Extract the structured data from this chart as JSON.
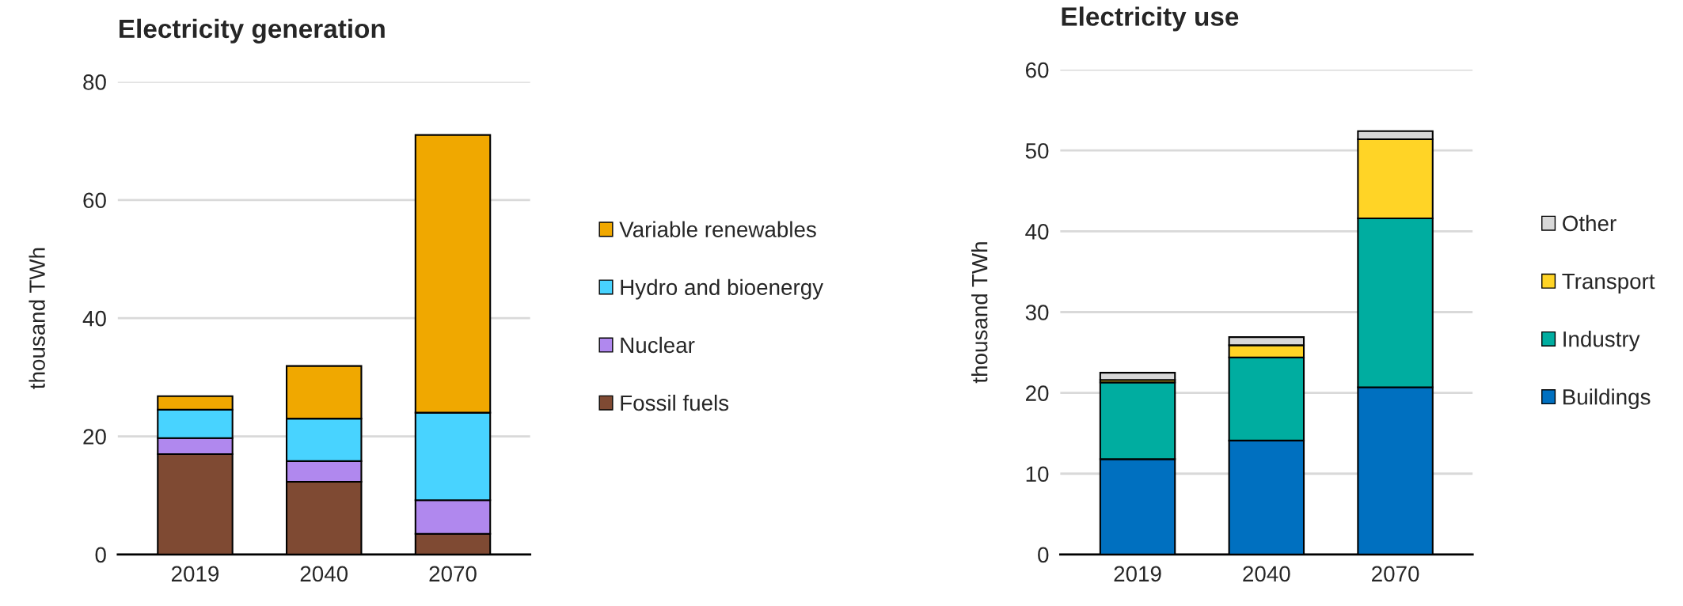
{
  "chart_data": [
    {
      "type": "bar",
      "title": "Electricity generation",
      "ylabel": "thousand TWh",
      "categories": [
        "2019",
        "2040",
        "2070"
      ],
      "stacked": true,
      "ylim": [
        0,
        80
      ],
      "yticks": [
        0,
        20,
        40,
        60,
        80
      ],
      "grid": "y",
      "legend": "right",
      "series": [
        {
          "name": "Fossil fuels",
          "color": "#7f4a33",
          "values": [
            17.0,
            12.3,
            3.5
          ]
        },
        {
          "name": "Nuclear",
          "color": "#b088ee",
          "values": [
            2.7,
            3.5,
            5.7
          ]
        },
        {
          "name": "Hydro and bioenergy",
          "color": "#48d3ff",
          "values": [
            4.8,
            7.2,
            14.8
          ]
        },
        {
          "name": "Variable renewables",
          "color": "#f0a800",
          "values": [
            2.3,
            8.9,
            47.0
          ]
        }
      ]
    },
    {
      "type": "bar",
      "title": "Electricity use",
      "ylabel": "thousand TWh",
      "categories": [
        "2019",
        "2040",
        "2070"
      ],
      "stacked": true,
      "ylim": [
        0,
        60
      ],
      "yticks": [
        0,
        10,
        20,
        30,
        40,
        50,
        60
      ],
      "grid": "y",
      "legend": "right",
      "series": [
        {
          "name": "Buildings",
          "color": "#0070c0",
          "values": [
            11.8,
            14.1,
            20.7
          ]
        },
        {
          "name": "Industry",
          "color": "#00ada0",
          "values": [
            9.5,
            10.3,
            20.9
          ]
        },
        {
          "name": "Transport",
          "color": "#ffd426",
          "values": [
            0.3,
            1.5,
            9.8
          ]
        },
        {
          "name": "Other",
          "color": "#d8d8d8",
          "values": [
            0.9,
            1.0,
            1.0
          ]
        }
      ]
    }
  ]
}
